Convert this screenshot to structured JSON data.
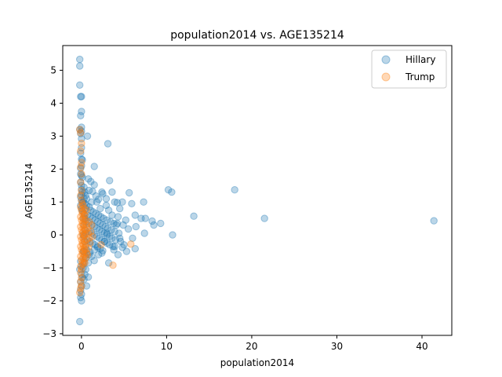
{
  "chart_data": {
    "type": "scatter",
    "title": "population2014 vs. AGE135214",
    "xlabel": "population2014",
    "ylabel": "AGE135214",
    "xlim": [
      -2.2,
      43.5
    ],
    "ylim": [
      -3.05,
      5.75
    ],
    "xticks": [
      0,
      10,
      20,
      30,
      40
    ],
    "yticks": [
      -3,
      -2,
      -1,
      0,
      1,
      2,
      3,
      4,
      5
    ],
    "grid": false,
    "legend_position": "top-right",
    "series": [
      {
        "name": "Hillary",
        "color": "#1f77b4",
        "opacity": 0.3,
        "points": [
          [
            -0.2,
            5.33
          ],
          [
            -0.2,
            5.13
          ],
          [
            -0.2,
            4.55
          ],
          [
            -0.1,
            4.2
          ],
          [
            0.0,
            4.2
          ],
          [
            0.0,
            3.75
          ],
          [
            -0.1,
            3.62
          ],
          [
            0.0,
            3.27
          ],
          [
            -0.2,
            3.2
          ],
          [
            0.0,
            3.15
          ],
          [
            -0.1,
            3.08
          ],
          [
            0.0,
            2.92
          ],
          [
            0.0,
            2.65
          ],
          [
            -0.1,
            2.48
          ],
          [
            0.0,
            2.3
          ],
          [
            0.1,
            2.28
          ],
          [
            0.0,
            2.1
          ],
          [
            -0.1,
            2.02
          ],
          [
            -0.1,
            1.85
          ],
          [
            0.0,
            1.8
          ],
          [
            0.1,
            1.75
          ],
          [
            -0.1,
            1.6
          ],
          [
            0.0,
            1.5
          ],
          [
            0.0,
            1.38
          ],
          [
            0.1,
            1.3
          ],
          [
            0.0,
            1.22
          ],
          [
            -0.1,
            1.15
          ],
          [
            0.0,
            1.05
          ],
          [
            0.1,
            0.98
          ],
          [
            -0.1,
            0.9
          ],
          [
            0.0,
            0.8
          ],
          [
            0.1,
            0.72
          ],
          [
            -0.1,
            -0.8
          ],
          [
            0.0,
            -0.95
          ],
          [
            -0.2,
            -1.05
          ],
          [
            0.0,
            -1.2
          ],
          [
            0.1,
            -1.3
          ],
          [
            -0.1,
            -1.42
          ],
          [
            0.0,
            -1.55
          ],
          [
            -0.1,
            -1.68
          ],
          [
            0.0,
            -1.8
          ],
          [
            -0.1,
            -1.9
          ],
          [
            0.0,
            -2.0
          ],
          [
            -0.2,
            -2.63
          ],
          [
            0.7,
            3.0
          ],
          [
            1.5,
            2.08
          ],
          [
            0.8,
            1.7
          ],
          [
            1.1,
            1.62
          ],
          [
            1.5,
            1.52
          ],
          [
            0.9,
            1.35
          ],
          [
            1.3,
            1.32
          ],
          [
            1.7,
            1.18
          ],
          [
            0.6,
            1.1
          ],
          [
            2.0,
            1.08
          ],
          [
            1.2,
            1.0
          ],
          [
            2.5,
            1.25
          ],
          [
            2.9,
            1.1
          ],
          [
            3.3,
            1.65
          ],
          [
            3.6,
            1.3
          ],
          [
            3.1,
            2.77
          ],
          [
            3.9,
            1.0
          ],
          [
            4.2,
            0.98
          ],
          [
            4.5,
            0.8
          ],
          [
            4.8,
            1.0
          ],
          [
            5.6,
            1.28
          ],
          [
            5.9,
            0.95
          ],
          [
            6.3,
            0.6
          ],
          [
            7.0,
            0.5
          ],
          [
            7.3,
            1.0
          ],
          [
            7.5,
            0.5
          ],
          [
            8.3,
            0.42
          ],
          [
            8.5,
            0.3
          ],
          [
            9.3,
            0.35
          ],
          [
            10.2,
            1.37
          ],
          [
            10.6,
            1.3
          ],
          [
            10.7,
            0.0
          ],
          [
            13.2,
            0.57
          ],
          [
            18.0,
            1.37
          ],
          [
            21.5,
            0.5
          ],
          [
            41.4,
            0.43
          ],
          [
            3.2,
            -0.85
          ],
          [
            3.8,
            -0.45
          ],
          [
            4.3,
            -0.6
          ],
          [
            4.8,
            -0.38
          ],
          [
            5.3,
            -0.5
          ],
          [
            6.3,
            -0.42
          ],
          [
            6.0,
            -0.1
          ],
          [
            7.4,
            0.05
          ],
          [
            5.5,
            0.18
          ],
          [
            4.2,
            0.35
          ],
          [
            6.4,
            0.25
          ],
          [
            2.4,
            -0.55
          ],
          [
            1.5,
            -0.78
          ],
          [
            0.8,
            -1.28
          ],
          [
            0.6,
            -1.55
          ],
          [
            1.9,
            -0.35
          ],
          [
            2.7,
            -0.2
          ],
          [
            1.0,
            -0.52
          ],
          [
            0.6,
            0.9
          ],
          [
            0.9,
            0.85
          ],
          [
            1.1,
            0.75
          ],
          [
            1.4,
            0.7
          ],
          [
            1.7,
            0.65
          ],
          [
            2.0,
            0.6
          ],
          [
            2.3,
            0.55
          ],
          [
            2.6,
            0.5
          ],
          [
            3.0,
            0.45
          ],
          [
            3.4,
            0.4
          ],
          [
            3.8,
            0.35
          ],
          [
            4.1,
            0.3
          ],
          [
            0.7,
            0.6
          ],
          [
            1.0,
            0.55
          ],
          [
            1.3,
            0.5
          ],
          [
            1.6,
            0.45
          ],
          [
            1.9,
            0.4
          ],
          [
            2.2,
            0.35
          ],
          [
            2.5,
            0.3
          ],
          [
            2.8,
            0.25
          ],
          [
            3.1,
            0.2
          ],
          [
            3.5,
            0.15
          ],
          [
            3.9,
            0.1
          ],
          [
            4.4,
            0.05
          ],
          [
            0.8,
            0.35
          ],
          [
            1.2,
            0.3
          ],
          [
            1.5,
            0.25
          ],
          [
            1.8,
            0.2
          ],
          [
            2.1,
            0.15
          ],
          [
            2.4,
            0.1
          ],
          [
            2.7,
            0.05
          ],
          [
            3.0,
            0.0
          ],
          [
            3.3,
            -0.05
          ],
          [
            3.6,
            -0.1
          ],
          [
            4.0,
            -0.15
          ],
          [
            4.6,
            -0.2
          ],
          [
            0.9,
            0.1
          ],
          [
            1.2,
            0.05
          ],
          [
            1.5,
            0.0
          ],
          [
            1.8,
            -0.05
          ],
          [
            2.1,
            -0.1
          ],
          [
            2.4,
            -0.15
          ],
          [
            2.7,
            -0.2
          ],
          [
            3.0,
            -0.25
          ],
          [
            3.3,
            -0.3
          ],
          [
            3.7,
            -0.35
          ],
          [
            0.7,
            -0.15
          ],
          [
            1.0,
            -0.2
          ],
          [
            1.3,
            -0.25
          ],
          [
            1.6,
            -0.3
          ],
          [
            1.9,
            -0.38
          ],
          [
            2.2,
            -0.42
          ],
          [
            2.5,
            -0.48
          ],
          [
            0.6,
            -0.45
          ],
          [
            0.9,
            -0.6
          ],
          [
            1.2,
            -0.65
          ],
          [
            0.5,
            -0.7
          ],
          [
            0.8,
            -0.85
          ],
          [
            0.5,
            -1.05
          ],
          [
            0.4,
            -1.2
          ],
          [
            0.3,
            -1.35
          ],
          [
            0.3,
            1.45
          ],
          [
            0.4,
            1.3
          ],
          [
            0.5,
            1.2
          ],
          [
            0.3,
            1.1
          ],
          [
            0.4,
            0.95
          ],
          [
            0.5,
            0.8
          ],
          [
            0.3,
            0.65
          ],
          [
            0.4,
            0.5
          ],
          [
            0.5,
            0.4
          ],
          [
            0.3,
            0.3
          ],
          [
            0.4,
            0.15
          ],
          [
            0.5,
            0.05
          ],
          [
            0.3,
            -0.05
          ],
          [
            0.4,
            -0.2
          ],
          [
            0.5,
            -0.35
          ],
          [
            0.3,
            -0.5
          ],
          [
            0.4,
            -0.65
          ],
          [
            0.3,
            -0.85
          ],
          [
            0.2,
            -1.0
          ],
          [
            0.2,
            1.0
          ],
          [
            0.2,
            0.5
          ],
          [
            0.2,
            0.0
          ],
          [
            0.2,
            -0.5
          ],
          [
            2.2,
            0.8
          ],
          [
            2.9,
            0.9
          ],
          [
            3.2,
            0.75
          ],
          [
            3.6,
            0.6
          ],
          [
            4.3,
            0.55
          ],
          [
            4.9,
            0.3
          ],
          [
            5.2,
            0.45
          ],
          [
            1.8,
            1.0
          ],
          [
            2.4,
            1.3
          ],
          [
            3.0,
            0.05
          ],
          [
            4.5,
            -0.1
          ],
          [
            5.0,
            -0.3
          ],
          [
            2.0,
            -0.6
          ],
          [
            1.5,
            -0.45
          ],
          [
            3.9,
            -0.35
          ]
        ]
      },
      {
        "name": "Trump",
        "color": "#ff7f0e",
        "opacity": 0.3,
        "points": [
          [
            -0.2,
            3.2
          ],
          [
            -0.1,
            3.1
          ],
          [
            0.0,
            2.78
          ],
          [
            -0.1,
            2.55
          ],
          [
            0.0,
            2.2
          ],
          [
            -0.1,
            2.05
          ],
          [
            0.0,
            1.85
          ],
          [
            -0.1,
            1.6
          ],
          [
            0.0,
            1.35
          ],
          [
            -0.1,
            1.2
          ],
          [
            0.0,
            1.05
          ],
          [
            0.1,
            0.95
          ],
          [
            -0.1,
            0.85
          ],
          [
            0.0,
            0.75
          ],
          [
            0.1,
            0.65
          ],
          [
            -0.1,
            0.55
          ],
          [
            0.0,
            0.45
          ],
          [
            0.1,
            0.35
          ],
          [
            -0.1,
            0.25
          ],
          [
            0.0,
            0.15
          ],
          [
            0.1,
            0.05
          ],
          [
            -0.1,
            -0.05
          ],
          [
            0.0,
            -0.15
          ],
          [
            0.1,
            -0.25
          ],
          [
            -0.1,
            -0.35
          ],
          [
            0.0,
            -0.45
          ],
          [
            0.1,
            -0.55
          ],
          [
            -0.1,
            -0.65
          ],
          [
            0.0,
            -0.75
          ],
          [
            0.1,
            -0.85
          ],
          [
            -0.1,
            -0.95
          ],
          [
            0.0,
            -1.05
          ],
          [
            -0.1,
            -1.15
          ],
          [
            0.0,
            -1.3
          ],
          [
            -0.1,
            -1.42
          ],
          [
            0.0,
            -1.55
          ],
          [
            -0.1,
            -1.62
          ],
          [
            -0.2,
            -1.75
          ],
          [
            0.2,
            0.9
          ],
          [
            0.3,
            0.8
          ],
          [
            0.2,
            0.7
          ],
          [
            0.3,
            0.6
          ],
          [
            0.2,
            0.5
          ],
          [
            0.3,
            0.4
          ],
          [
            0.2,
            0.3
          ],
          [
            0.3,
            0.2
          ],
          [
            0.2,
            0.1
          ],
          [
            0.3,
            0.0
          ],
          [
            0.2,
            -0.1
          ],
          [
            0.3,
            -0.2
          ],
          [
            0.2,
            -0.3
          ],
          [
            0.3,
            -0.4
          ],
          [
            0.2,
            -0.5
          ],
          [
            0.3,
            -0.6
          ],
          [
            0.2,
            -0.7
          ],
          [
            0.3,
            -0.8
          ],
          [
            0.2,
            -0.9
          ],
          [
            0.4,
            0.6
          ],
          [
            0.5,
            0.45
          ],
          [
            0.6,
            0.3
          ],
          [
            0.5,
            0.15
          ],
          [
            0.4,
            0.0
          ],
          [
            0.6,
            -0.15
          ],
          [
            0.5,
            -0.3
          ],
          [
            0.4,
            -0.45
          ],
          [
            0.6,
            -0.55
          ],
          [
            0.5,
            -0.7
          ],
          [
            0.7,
            0.2
          ],
          [
            0.8,
            0.05
          ],
          [
            0.9,
            -0.1
          ],
          [
            1.0,
            -0.25
          ],
          [
            0.8,
            -0.4
          ],
          [
            0.7,
            -0.6
          ],
          [
            1.1,
            0.1
          ],
          [
            1.3,
            -0.05
          ],
          [
            0.9,
            0.4
          ],
          [
            1.2,
            0.3
          ],
          [
            3.7,
            -0.92
          ],
          [
            5.8,
            -0.28
          ],
          [
            2.3,
            -0.3
          ],
          [
            0.6,
            0.75
          ],
          [
            0.4,
            -0.85
          ]
        ]
      }
    ]
  }
}
